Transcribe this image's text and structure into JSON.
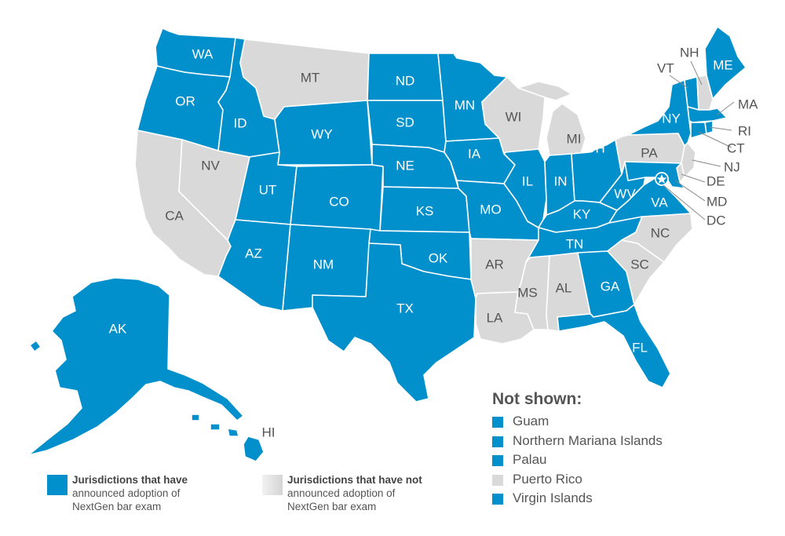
{
  "colors": {
    "adopted": "#0190cb",
    "not_adopted": "#d9d9d9"
  },
  "states": [
    {
      "code": "WA",
      "adopted": true
    },
    {
      "code": "OR",
      "adopted": true
    },
    {
      "code": "CA",
      "adopted": false
    },
    {
      "code": "NV",
      "adopted": false
    },
    {
      "code": "ID",
      "adopted": true
    },
    {
      "code": "MT",
      "adopted": false
    },
    {
      "code": "WY",
      "adopted": true
    },
    {
      "code": "UT",
      "adopted": true
    },
    {
      "code": "AZ",
      "adopted": true
    },
    {
      "code": "CO",
      "adopted": true
    },
    {
      "code": "NM",
      "adopted": true
    },
    {
      "code": "ND",
      "adopted": true
    },
    {
      "code": "SD",
      "adopted": true
    },
    {
      "code": "NE",
      "adopted": true
    },
    {
      "code": "KS",
      "adopted": true
    },
    {
      "code": "OK",
      "adopted": true
    },
    {
      "code": "TX",
      "adopted": true
    },
    {
      "code": "MN",
      "adopted": true
    },
    {
      "code": "IA",
      "adopted": true
    },
    {
      "code": "MO",
      "adopted": true
    },
    {
      "code": "AR",
      "adopted": false
    },
    {
      "code": "LA",
      "adopted": false
    },
    {
      "code": "WI",
      "adopted": false
    },
    {
      "code": "IL",
      "adopted": true
    },
    {
      "code": "MI",
      "adopted": false
    },
    {
      "code": "IN",
      "adopted": true
    },
    {
      "code": "OH",
      "adopted": true
    },
    {
      "code": "KY",
      "adopted": true
    },
    {
      "code": "TN",
      "adopted": true
    },
    {
      "code": "MS",
      "adopted": false
    },
    {
      "code": "AL",
      "adopted": false
    },
    {
      "code": "GA",
      "adopted": true
    },
    {
      "code": "FL",
      "adopted": true
    },
    {
      "code": "SC",
      "adopted": false
    },
    {
      "code": "NC",
      "adopted": false
    },
    {
      "code": "VA",
      "adopted": true
    },
    {
      "code": "WV",
      "adopted": true
    },
    {
      "code": "PA",
      "adopted": false
    },
    {
      "code": "NY",
      "adopted": true
    },
    {
      "code": "VT",
      "adopted": true
    },
    {
      "code": "NH",
      "adopted": false
    },
    {
      "code": "ME",
      "adopted": true
    },
    {
      "code": "MA",
      "adopted": true
    },
    {
      "code": "RI",
      "adopted": true
    },
    {
      "code": "CT",
      "adopted": true
    },
    {
      "code": "NJ",
      "adopted": false
    },
    {
      "code": "DE",
      "adopted": false
    },
    {
      "code": "MD",
      "adopted": true
    },
    {
      "code": "DC",
      "adopted": true
    },
    {
      "code": "AK",
      "adopted": true
    },
    {
      "code": "HI",
      "adopted": true
    }
  ],
  "legend": {
    "adopted": {
      "title": "Jurisdictions that have",
      "line2": "announced adoption of",
      "line3": "NextGen bar exam"
    },
    "not_adopted": {
      "title": "Jurisdictions that have not",
      "line2": "announced adoption of",
      "line3": "NextGen bar exam"
    }
  },
  "not_shown": {
    "title": "Not shown:",
    "items": [
      {
        "name": "Guam",
        "adopted": true
      },
      {
        "name": "Northern Mariana Islands",
        "adopted": true
      },
      {
        "name": "Palau",
        "adopted": true
      },
      {
        "name": "Puerto Rico",
        "adopted": false
      },
      {
        "name": "Virgin Islands",
        "adopted": true
      }
    ]
  }
}
